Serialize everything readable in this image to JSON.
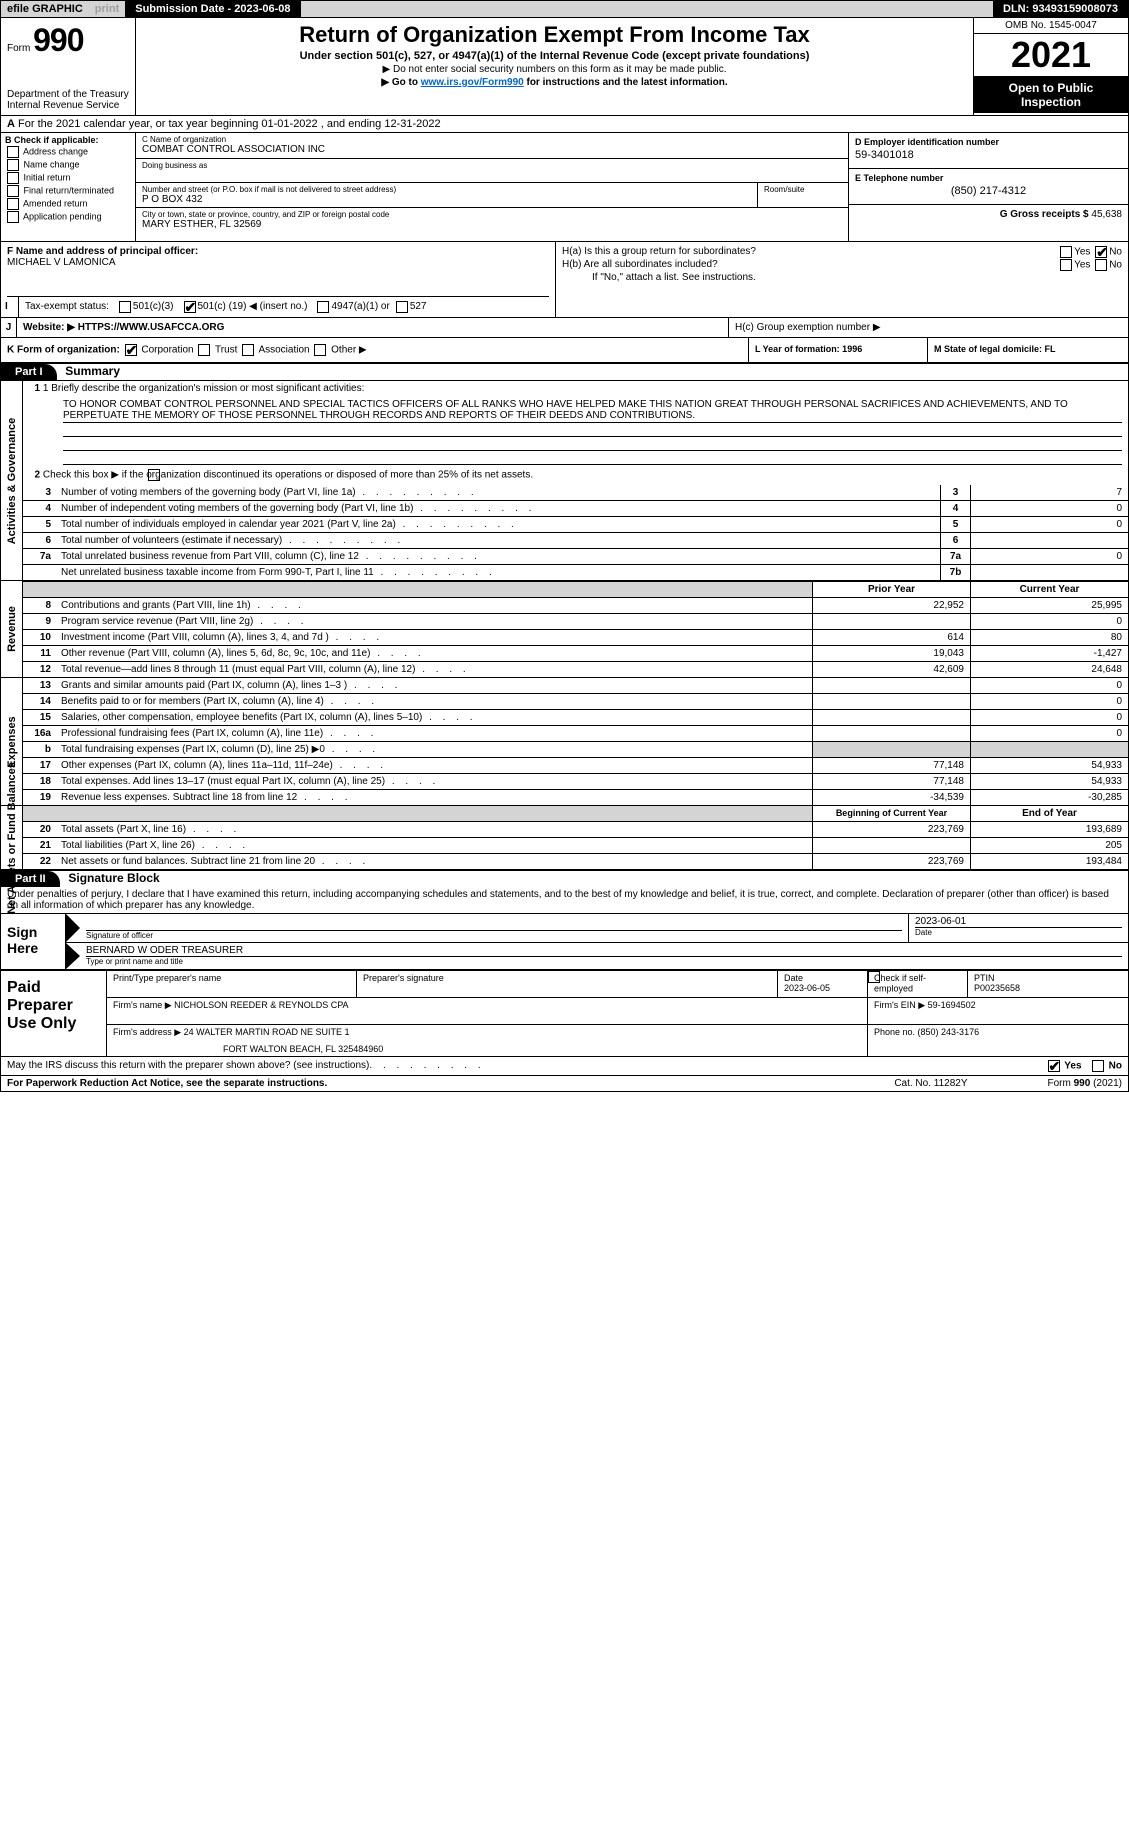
{
  "topbar": {
    "efile": "efile GRAPHIC",
    "print": "print",
    "submission": "Submission Date - 2023-06-08",
    "dln": "DLN: 93493159008073"
  },
  "header": {
    "form_label": "Form",
    "form_number": "990",
    "dept": "Department of the Treasury",
    "irs": "Internal Revenue Service",
    "title": "Return of Organization Exempt From Income Tax",
    "sub1": "Under section 501(c), 527, or 4947(a)(1) of the Internal Revenue Code (except private foundations)",
    "sub2": "▶ Do not enter social security numbers on this form as it may be made public.",
    "sub3_pre": "▶ Go to ",
    "sub3_link": "www.irs.gov/Form990",
    "sub3_post": " for instructions and the latest information.",
    "omb": "OMB No. 1545-0047",
    "year": "2021",
    "open": "Open to Public Inspection"
  },
  "rowA": "For the 2021 calendar year, or tax year beginning 01-01-2022   , and ending 12-31-2022",
  "boxB": {
    "label": "B Check if applicable:",
    "opts": [
      "Address change",
      "Name change",
      "Initial return",
      "Final return/terminated",
      "Amended return",
      "Application pending"
    ]
  },
  "boxC": {
    "name_lbl": "C Name of organization",
    "name": "COMBAT CONTROL ASSOCIATION INC",
    "dba_lbl": "Doing business as",
    "street_lbl": "Number and street (or P.O. box if mail is not delivered to street address)",
    "street": "P O BOX 432",
    "room_lbl": "Room/suite",
    "city_lbl": "City or town, state or province, country, and ZIP or foreign postal code",
    "city": "MARY ESTHER, FL  32569"
  },
  "boxD_ein_lbl": "D Employer identification number",
  "boxD_ein": "59-3401018",
  "boxE_tel_lbl": "E Telephone number",
  "boxE_tel": "(850) 217-4312",
  "boxG_lbl": "G Gross receipts $",
  "boxG_val": "45,638",
  "boxF": {
    "lbl": "F Name and address of principal officer:",
    "val": "MICHAEL V LAMONICA"
  },
  "boxH": {
    "ha": "H(a)  Is this a group return for subordinates?",
    "hb": "H(b)  Are all subordinates included?",
    "hb_note": "If \"No,\" attach a list. See instructions.",
    "hc": "H(c)  Group exemption number ▶",
    "yes": "Yes",
    "no": "No"
  },
  "rowI": {
    "lbl": "Tax-exempt status:",
    "o1": "501(c)(3)",
    "o2_a": "501(c) (",
    "o2_b": "19",
    "o2_c": ") ◀ (insert no.)",
    "o3": "4947(a)(1) or",
    "o4": "527"
  },
  "rowJ_lbl": "Website: ▶",
  "rowJ_val": "HTTPS://WWW.USAFCCA.ORG",
  "rowK": "K Form of organization:",
  "rowK_opts": [
    "Corporation",
    "Trust",
    "Association",
    "Other ▶"
  ],
  "rowL": "L Year of formation: 1996",
  "rowM": "M State of legal domicile: FL",
  "part1": {
    "hdr": "Part I",
    "title": "Summary",
    "q1_lbl": "1  Briefly describe the organization's mission or most significant activities:",
    "q1_txt": "TO HONOR COMBAT CONTROL PERSONNEL AND SPECIAL TACTICS OFFICERS OF ALL RANKS WHO HAVE HELPED MAKE THIS NATION GREAT THROUGH PERSONAL SACRIFICES AND ACHIEVEMENTS, AND TO PERPETUATE THE MEMORY OF THOSE PERSONNEL THROUGH RECORDS AND REPORTS OF THEIR DEEDS AND CONTRIBUTIONS.",
    "q2": "Check this box ▶       if the organization discontinued its operations or disposed of more than 25% of its net assets.",
    "rows_ag": [
      {
        "n": "3",
        "t": "Number of voting members of the governing body (Part VI, line 1a)",
        "box": "3",
        "v": "7"
      },
      {
        "n": "4",
        "t": "Number of independent voting members of the governing body (Part VI, line 1b)",
        "box": "4",
        "v": "0"
      },
      {
        "n": "5",
        "t": "Total number of individuals employed in calendar year 2021 (Part V, line 2a)",
        "box": "5",
        "v": "0"
      },
      {
        "n": "6",
        "t": "Total number of volunteers (estimate if necessary)",
        "box": "6",
        "v": ""
      },
      {
        "n": "7a",
        "t": "Total unrelated business revenue from Part VIII, column (C), line 12",
        "box": "7a",
        "v": "0"
      },
      {
        "n": "",
        "t": "Net unrelated business taxable income from Form 990-T, Part I, line 11",
        "box": "7b",
        "v": ""
      }
    ],
    "prior_hdr": "Prior Year",
    "curr_hdr": "Current Year",
    "rows_rev": [
      {
        "n": "8",
        "t": "Contributions and grants (Part VIII, line 1h)",
        "p": "22,952",
        "c": "25,995"
      },
      {
        "n": "9",
        "t": "Program service revenue (Part VIII, line 2g)",
        "p": "",
        "c": "0"
      },
      {
        "n": "10",
        "t": "Investment income (Part VIII, column (A), lines 3, 4, and 7d )",
        "p": "614",
        "c": "80"
      },
      {
        "n": "11",
        "t": "Other revenue (Part VIII, column (A), lines 5, 6d, 8c, 9c, 10c, and 11e)",
        "p": "19,043",
        "c": "-1,427"
      },
      {
        "n": "12",
        "t": "Total revenue—add lines 8 through 11 (must equal Part VIII, column (A), line 12)",
        "p": "42,609",
        "c": "24,648"
      }
    ],
    "rows_exp": [
      {
        "n": "13",
        "t": "Grants and similar amounts paid (Part IX, column (A), lines 1–3 )",
        "p": "",
        "c": "0"
      },
      {
        "n": "14",
        "t": "Benefits paid to or for members (Part IX, column (A), line 4)",
        "p": "",
        "c": "0"
      },
      {
        "n": "15",
        "t": "Salaries, other compensation, employee benefits (Part IX, column (A), lines 5–10)",
        "p": "",
        "c": "0"
      },
      {
        "n": "16a",
        "t": "Professional fundraising fees (Part IX, column (A), line 11e)",
        "p": "",
        "c": "0"
      },
      {
        "n": "b",
        "t": "Total fundraising expenses (Part IX, column (D), line 25) ▶0",
        "p": "shaded",
        "c": "shaded"
      },
      {
        "n": "17",
        "t": "Other expenses (Part IX, column (A), lines 11a–11d, 11f–24e)",
        "p": "77,148",
        "c": "54,933"
      },
      {
        "n": "18",
        "t": "Total expenses. Add lines 13–17 (must equal Part IX, column (A), line 25)",
        "p": "77,148",
        "c": "54,933"
      },
      {
        "n": "19",
        "t": "Revenue less expenses. Subtract line 18 from line 12",
        "p": "-34,539",
        "c": "-30,285"
      }
    ],
    "beg_hdr": "Beginning of Current Year",
    "end_hdr": "End of Year",
    "rows_na": [
      {
        "n": "20",
        "t": "Total assets (Part X, line 16)",
        "p": "223,769",
        "c": "193,689"
      },
      {
        "n": "21",
        "t": "Total liabilities (Part X, line 26)",
        "p": "",
        "c": "205"
      },
      {
        "n": "22",
        "t": "Net assets or fund balances. Subtract line 21 from line 20",
        "p": "223,769",
        "c": "193,484"
      }
    ],
    "tab_ag": "Activities & Governance",
    "tab_rev": "Revenue",
    "tab_exp": "Expenses",
    "tab_na": "Net Assets or Fund Balances"
  },
  "part2": {
    "hdr": "Part II",
    "title": "Signature Block",
    "penalties": "Under penalties of perjury, I declare that I have examined this return, including accompanying schedules and statements, and to the best of my knowledge and belief, it is true, correct, and complete. Declaration of preparer (other than officer) is based on all information of which preparer has any knowledge."
  },
  "sign": {
    "label": "Sign Here",
    "sig_officer": "Signature of officer",
    "date": "2023-06-01",
    "date_lbl": "Date",
    "name": "BERNARD W ODER  TREASURER",
    "name_lbl": "Type or print name and title"
  },
  "prep": {
    "label": "Paid Preparer Use Only",
    "r1c1": "Print/Type preparer's name",
    "r1c2": "Preparer's signature",
    "r1c3_lbl": "Date",
    "r1c3": "2023-06-05",
    "r1c4": "Check        if self-employed",
    "r1c5_lbl": "PTIN",
    "r1c5": "P00235658",
    "r2_lbl": "Firm's name    ▶",
    "r2_val": "NICHOLSON REEDER & REYNOLDS CPA",
    "r2_ein": "Firm's EIN ▶ 59-1694502",
    "r3_lbl": "Firm's address ▶",
    "r3_val": "24 WALTER MARTIN ROAD NE SUITE 1",
    "r3_val2": "FORT WALTON BEACH, FL  325484960",
    "r3_phone": "Phone no. (850) 243-3176"
  },
  "discuss": "May the IRS discuss this return with the preparer shown above? (see instructions)",
  "footer": {
    "left": "For Paperwork Reduction Act Notice, see the separate instructions.",
    "mid": "Cat. No. 11282Y",
    "right": "Form 990 (2021)"
  }
}
